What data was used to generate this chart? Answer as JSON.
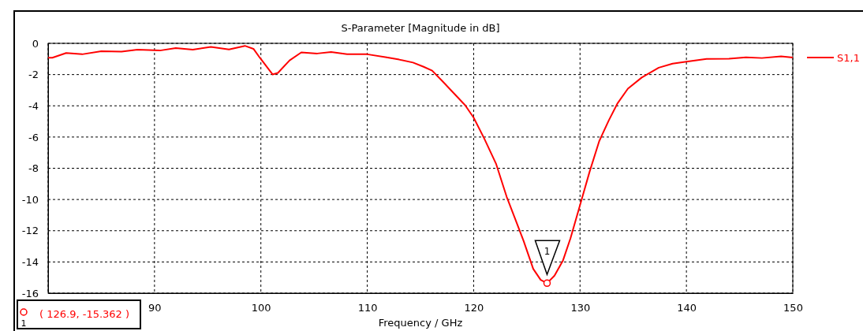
{
  "chart_data": {
    "type": "line",
    "title": "S-Parameter [Magnitude in dB]",
    "xlabel": "Frequency / GHz",
    "xlim": [
      80,
      150
    ],
    "xticks": [
      {
        "value": 80,
        "label": null
      },
      90,
      100,
      110,
      120,
      130,
      140,
      150
    ],
    "ylim": [
      -16,
      0
    ],
    "yticks": [
      -16,
      -14,
      -12,
      -10,
      -8,
      -6,
      -4,
      -2,
      0
    ],
    "grid": true,
    "legend": "right",
    "line_style": "solid",
    "marker": "none",
    "series": [
      {
        "name": "S1,1",
        "color": "#ff0000",
        "x": [
          80,
          80.4,
          81.7,
          83.2,
          85,
          86.9,
          88.4,
          90.5,
          92,
          93.6,
          95.3,
          97,
          98.5,
          99.3,
          99.9,
          101.1,
          101.6,
          102.7,
          103.8,
          105.3,
          106.6,
          108.1,
          110,
          111.7,
          113,
          114.3,
          115.3,
          116.1,
          117.1,
          119.2,
          120,
          121,
          122.1,
          123.1,
          123.9,
          124.7,
          125.6,
          126.3,
          126.9,
          127.6,
          128.4,
          129.1,
          130,
          130.9,
          131.8,
          132.7,
          133.5,
          134.5,
          135.8,
          137.4,
          138.7,
          140,
          141.9,
          144,
          145.6,
          147.1,
          148.9,
          150
        ],
        "values": [
          -0.92,
          -0.92,
          -0.62,
          -0.7,
          -0.51,
          -0.53,
          -0.4,
          -0.46,
          -0.3,
          -0.4,
          -0.23,
          -0.39,
          -0.16,
          -0.35,
          -0.92,
          -1.99,
          -1.89,
          -1.09,
          -0.58,
          -0.65,
          -0.55,
          -0.69,
          -0.7,
          -0.88,
          -1.04,
          -1.23,
          -1.5,
          -1.75,
          -2.45,
          -3.96,
          -4.76,
          -6.1,
          -7.7,
          -9.82,
          -11.24,
          -12.66,
          -14.44,
          -15.15,
          -15.362,
          -14.88,
          -13.9,
          -12.49,
          -10.36,
          -8.22,
          -6.27,
          -4.94,
          -3.87,
          -2.9,
          -2.19,
          -1.56,
          -1.3,
          -1.17,
          -1.0,
          -0.98,
          -0.89,
          -0.94,
          -0.83,
          -0.91
        ]
      }
    ],
    "annotations": [
      {
        "text": "1",
        "x": 126.9,
        "y": -15.362
      },
      "( 126.9, -15.362 )"
    ]
  }
}
